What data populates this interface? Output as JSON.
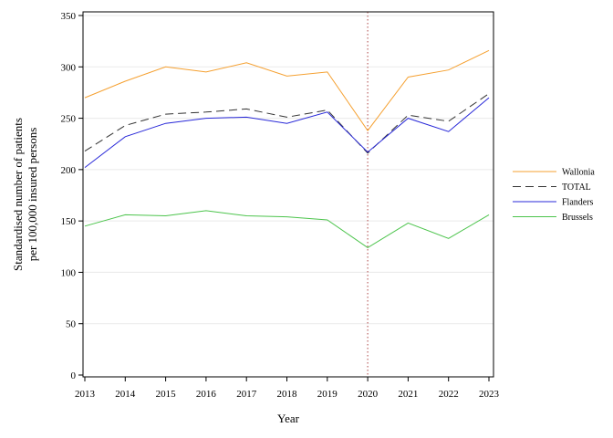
{
  "chart_data": {
    "type": "line",
    "title": "",
    "xlabel": "Year",
    "ylabel_lines": [
      "Standardised number of patients",
      "per 100,000 insured persons"
    ],
    "x": [
      2013,
      2014,
      2015,
      2016,
      2017,
      2018,
      2019,
      2020,
      2021,
      2022,
      2023
    ],
    "xlim": [
      2013,
      2023
    ],
    "ylim": [
      0,
      350
    ],
    "yticks": [
      0,
      50,
      100,
      150,
      200,
      250,
      300,
      350
    ],
    "grid": "horizontal",
    "legend_position": "right",
    "reference_line": {
      "x": 2020,
      "style": "dotted",
      "color": "#c07070"
    },
    "series": [
      {
        "name": "Wallonia",
        "color": "#f5a030",
        "dash": "solid",
        "values": [
          270,
          286,
          300,
          295,
          304,
          291,
          295,
          238,
          290,
          297,
          316
        ]
      },
      {
        "name": "TOTAL",
        "color": "#333333",
        "dash": "dashed",
        "values": [
          218,
          243,
          254,
          256,
          259,
          251,
          258,
          216,
          253,
          247,
          274
        ]
      },
      {
        "name": "Flanders",
        "color": "#2828d8",
        "dash": "solid",
        "values": [
          202,
          232,
          245,
          250,
          251,
          245,
          256,
          217,
          250,
          237,
          270
        ]
      },
      {
        "name": "Brussels",
        "color": "#4cc44c",
        "dash": "solid",
        "values": [
          145,
          156,
          155,
          160,
          155,
          154,
          151,
          124,
          148,
          133,
          156
        ]
      }
    ]
  }
}
